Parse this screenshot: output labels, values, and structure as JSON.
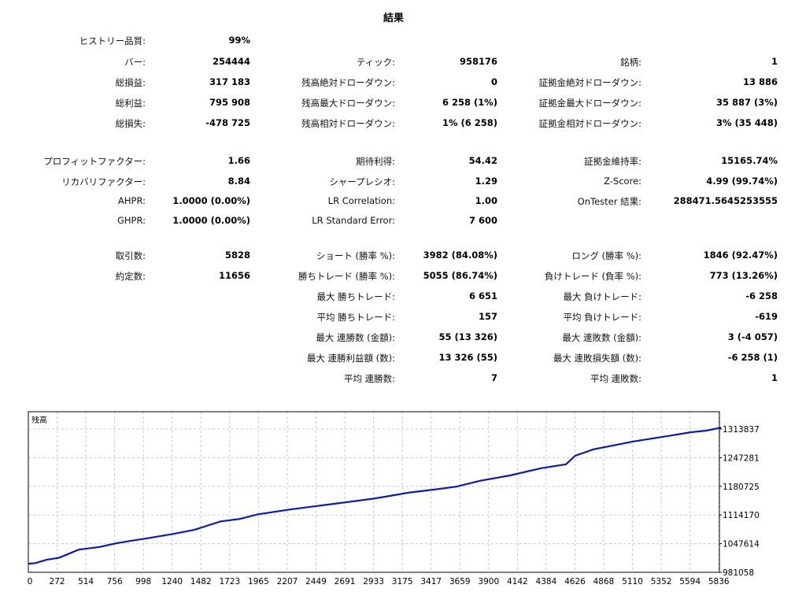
{
  "title": "結果",
  "rows": [
    [
      {
        "label": "ヒストリー品質:",
        "value": "99%"
      },
      null,
      null
    ],
    [
      {
        "label": "バー:",
        "value": "254444"
      },
      {
        "label": "ティック:",
        "value": "958176"
      },
      {
        "label": "銘柄:",
        "value": "1"
      }
    ],
    [
      {
        "label": "総損益:",
        "value": "317 183"
      },
      {
        "label": "残高絶対ドローダウン:",
        "value": "0"
      },
      {
        "label": "証拠金絶対ドローダウン:",
        "value": "13 886"
      }
    ],
    [
      {
        "label": "総利益:",
        "value": "795 908"
      },
      {
        "label": "残高最大ドローダウン:",
        "value": "6 258 (1%)"
      },
      {
        "label": "証拠金最大ドローダウン:",
        "value": "35 887 (3%)"
      }
    ],
    [
      {
        "label": "総損失:",
        "value": "-478 725"
      },
      {
        "label": "残高相対ドローダウン:",
        "value": "1% (6 258)"
      },
      {
        "label": "証拠金相対ドローダウン:",
        "value": "3% (35 448)"
      }
    ],
    [
      {
        "label": "プロフィットファクター:",
        "value": "1.66"
      },
      {
        "label": "期待利得:",
        "value": "54.42"
      },
      {
        "label": "証拠金維持率:",
        "value": "15165.74%"
      }
    ],
    [
      {
        "label": "リカバリファクター:",
        "value": "8.84"
      },
      {
        "label": "シャープレシオ:",
        "value": "1.29"
      },
      {
        "label": "Z-Score:",
        "value": "4.99 (99.74%)"
      }
    ],
    [
      {
        "label": "AHPR:",
        "value": "1.0000 (0.00%)"
      },
      {
        "label": "LR Correlation:",
        "value": "1.00"
      },
      {
        "label": "OnTester 結果:",
        "value": "288471.5645253555"
      }
    ],
    [
      {
        "label": "GHPR:",
        "value": "1.0000 (0.00%)"
      },
      {
        "label": "LR Standard Error:",
        "value": "7 600"
      },
      null
    ],
    [
      {
        "label": "取引数:",
        "value": "5828"
      },
      {
        "label": "ショート (勝率 %):",
        "value": "3982 (84.08%)"
      },
      {
        "label": "ロング (勝率 %):",
        "value": "1846 (92.47%)"
      }
    ],
    [
      {
        "label": "約定数:",
        "value": "11656"
      },
      {
        "label": "勝ちトレード (勝率 %):",
        "value": "5055 (86.74%)"
      },
      {
        "label": "負けトレード (負率 %):",
        "value": "773 (13.26%)"
      }
    ],
    [
      null,
      {
        "label": "最大 勝ちトレード:",
        "value": "6 651"
      },
      {
        "label": "最大 負けトレード:",
        "value": "-6 258"
      }
    ],
    [
      null,
      {
        "label": "平均 勝ちトレード:",
        "value": "157"
      },
      {
        "label": "平均 負けトレード:",
        "value": "-619"
      }
    ],
    [
      null,
      {
        "label": "最大 連勝数 (金額):",
        "value": "55 (13 326)"
      },
      {
        "label": "最大 連敗数 (金額):",
        "value": "3 (-4 057)"
      }
    ],
    [
      null,
      {
        "label": "最大 連勝利益額 (数):",
        "value": "13 326 (55)"
      },
      {
        "label": "最大 連敗損失額 (数):",
        "value": "-6 258 (1)"
      }
    ],
    [
      null,
      {
        "label": "平均 連勝数:",
        "value": "7"
      },
      {
        "label": "平均 連敗数:",
        "value": "1"
      }
    ]
  ],
  "chart_data": {
    "type": "line",
    "title": "残高",
    "xlim": [
      0,
      5828
    ],
    "ylim": [
      981058,
      1313837
    ],
    "x_ticks": [
      "0",
      "272",
      "514",
      "756",
      "998",
      "1240",
      "1482",
      "1723",
      "1965",
      "2207",
      "2449",
      "2691",
      "2933",
      "3175",
      "3417",
      "3659",
      "3900",
      "4142",
      "4384",
      "4626",
      "4868",
      "5110",
      "5352",
      "5594",
      "5836"
    ],
    "y_ticks": [
      "981058",
      "1047614",
      "1114170",
      "1180725",
      "1247281",
      "1313837"
    ],
    "grid": true,
    "line_color": "#0a1ab8",
    "series": [
      {
        "x": [
          0,
          60,
          150,
          260,
          424,
          600,
          736,
          860,
          1000,
          1220,
          1400,
          1618,
          1780,
          1929,
          2200,
          2546,
          2900,
          3209,
          3428,
          3600,
          3806,
          4050,
          4316,
          4522,
          4601,
          4754,
          5085,
          5377,
          5576,
          5700,
          5828
        ],
        "y": [
          1001000,
          1002500,
          1010000,
          1015000,
          1033800,
          1040000,
          1048300,
          1054000,
          1060000,
          1070200,
          1080000,
          1099300,
          1105000,
          1115600,
          1127000,
          1139300,
          1152000,
          1166500,
          1173800,
          1180000,
          1193800,
          1206000,
          1222900,
          1232000,
          1252000,
          1266600,
          1284800,
          1297500,
          1306600,
          1310000,
          1317200
        ]
      }
    ]
  }
}
